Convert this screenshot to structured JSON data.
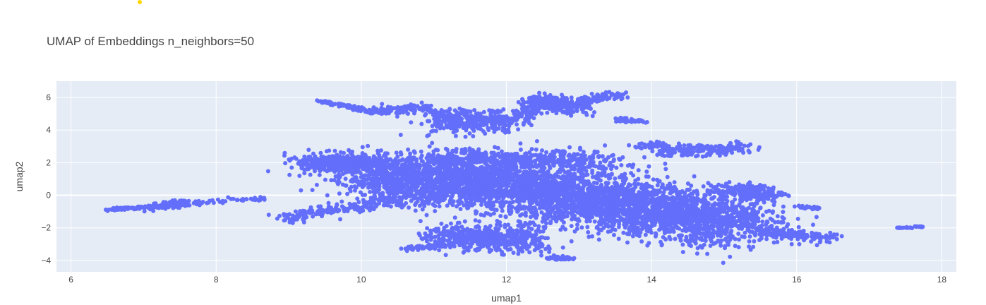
{
  "chart_data": {
    "type": "scatter",
    "title": "UMAP of Embeddings n_neighbors=50",
    "xlabel": "umap1",
    "ylabel": "umap2",
    "xlim": [
      5.8,
      18.2
    ],
    "ylim": [
      -4.7,
      7.0
    ],
    "x_ticks": [
      6,
      8,
      10,
      12,
      14,
      16,
      18
    ],
    "y_ticks": [
      -4,
      -2,
      0,
      2,
      4,
      6
    ],
    "grid": true,
    "colors": {
      "marker": "#636efa",
      "plot_bg": "#e5ecf6",
      "grid": "#ffffff",
      "stray_marker": "#ffd700"
    },
    "clusters": [
      {
        "from": [
          6.45,
          -0.9
        ],
        "to": [
          7.1,
          -0.7
        ],
        "spread": 0.05,
        "n": 60
      },
      {
        "from": [
          7.1,
          -0.7
        ],
        "to": [
          7.6,
          -0.5
        ],
        "spread": 0.12,
        "n": 90
      },
      {
        "from": [
          7.7,
          -0.5
        ],
        "to": [
          8.7,
          -0.2
        ],
        "spread": 0.06,
        "n": 40
      },
      {
        "from": [
          8.9,
          -1.4
        ],
        "to": [
          10.5,
          -0.3
        ],
        "spread": 0.18,
        "n": 180
      },
      {
        "from": [
          9.45,
          5.75
        ],
        "to": [
          10.2,
          5.1
        ],
        "spread": 0.06,
        "n": 110
      },
      {
        "from": [
          10.2,
          5.2
        ],
        "to": [
          10.9,
          5.4
        ],
        "spread": 0.16,
        "n": 90
      },
      {
        "from": [
          10.9,
          5.1
        ],
        "to": [
          11.5,
          4.9
        ],
        "spread": 0.15,
        "n": 50
      },
      {
        "from": [
          11.1,
          4.3
        ],
        "to": [
          12.0,
          4.7
        ],
        "spread": 0.35,
        "n": 280
      },
      {
        "from": [
          12.1,
          4.6
        ],
        "to": [
          12.5,
          5.6
        ],
        "spread": 0.18,
        "n": 90
      },
      {
        "from": [
          12.4,
          5.8
        ],
        "to": [
          13.0,
          5.3
        ],
        "spread": 0.22,
        "n": 240
      },
      {
        "from": [
          13.0,
          5.7
        ],
        "to": [
          13.6,
          6.2
        ],
        "spread": 0.12,
        "n": 90
      },
      {
        "from": [
          13.5,
          4.7
        ],
        "to": [
          13.9,
          4.5
        ],
        "spread": 0.06,
        "n": 40
      },
      {
        "from": [
          9.3,
          2.0
        ],
        "to": [
          10.2,
          2.0
        ],
        "spread": 0.28,
        "n": 450
      },
      {
        "from": [
          10.2,
          1.0
        ],
        "to": [
          12.0,
          0.8
        ],
        "spread": 0.7,
        "n": 1600
      },
      {
        "from": [
          11.0,
          2.3
        ],
        "to": [
          13.5,
          2.0
        ],
        "spread": 0.35,
        "n": 500
      },
      {
        "from": [
          12.0,
          0.5
        ],
        "to": [
          13.5,
          -0.5
        ],
        "spread": 0.8,
        "n": 1400
      },
      {
        "from": [
          13.5,
          -0.5
        ],
        "to": [
          15.2,
          -1.8
        ],
        "spread": 0.75,
        "n": 1600
      },
      {
        "from": [
          14.2,
          2.7
        ],
        "to": [
          15.3,
          2.9
        ],
        "spread": 0.18,
        "n": 200
      },
      {
        "from": [
          13.8,
          3.1
        ],
        "to": [
          14.2,
          3.1
        ],
        "spread": 0.1,
        "n": 40
      },
      {
        "from": [
          15.0,
          0.4
        ],
        "to": [
          15.7,
          0.0
        ],
        "spread": 0.25,
        "n": 180
      },
      {
        "from": [
          11.2,
          -2.5
        ],
        "to": [
          12.3,
          -2.8
        ],
        "spread": 0.38,
        "n": 600
      },
      {
        "from": [
          10.6,
          -3.3
        ],
        "to": [
          11.2,
          -3.0
        ],
        "spread": 0.08,
        "n": 50
      },
      {
        "from": [
          12.5,
          -3.8
        ],
        "to": [
          12.9,
          -3.9
        ],
        "spread": 0.06,
        "n": 40
      },
      {
        "from": [
          15.5,
          -2.2
        ],
        "to": [
          16.5,
          -2.6
        ],
        "spread": 0.15,
        "n": 150
      },
      {
        "from": [
          16.0,
          -0.7
        ],
        "to": [
          16.3,
          -0.8
        ],
        "spread": 0.05,
        "n": 25
      },
      {
        "from": [
          17.4,
          -2.0
        ],
        "to": [
          17.6,
          -2.0
        ],
        "spread": 0.02,
        "n": 15
      },
      {
        "from": [
          17.6,
          -1.9
        ],
        "to": [
          17.75,
          -1.95
        ],
        "spread": 0.02,
        "n": 12
      }
    ]
  }
}
